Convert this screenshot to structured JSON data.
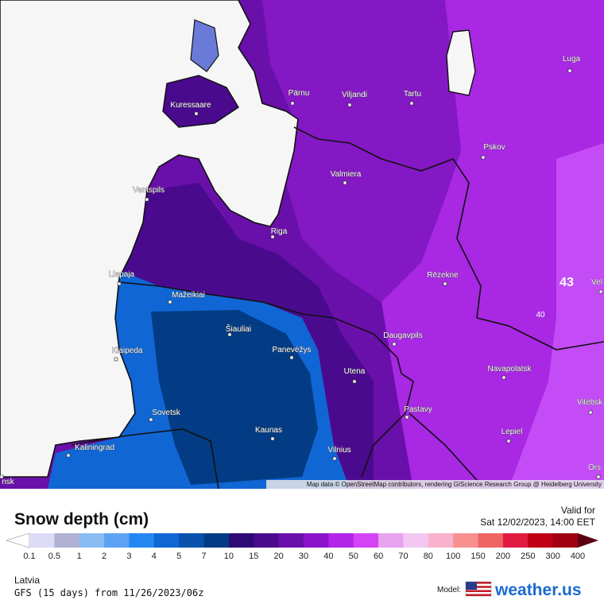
{
  "map": {
    "cities": [
      "Luga",
      "Tartu",
      "Pärnu",
      "Viljandi",
      "Kuressaare",
      "Pskov",
      "Valmiera",
      "Ventspils",
      "Riga",
      "Liepaja",
      "Rēzekne",
      "Mažeikiai",
      "Šiauliai",
      "Klaipeda",
      "Panevėžys",
      "Daugavpils",
      "Utena",
      "Navapolatsk",
      "Sovetsk",
      "Pastavy",
      "Kaunas",
      "Lepiel",
      "Kaliningrad",
      "Vilnius",
      "Vitebsk",
      "Ors",
      "Vel",
      "nsk"
    ],
    "value_labels": [
      "43",
      "40"
    ],
    "attribution": "Map data © OpenStreetMap contributors, rendering GIScience Research Group @ Heidelberg University"
  },
  "legend": {
    "title": "Snow depth (cm)",
    "valid_label": "Valid for",
    "valid_time": "Sat 12/02/2023, 14:00 EET",
    "ticks": [
      "0.1",
      "0.5",
      "1",
      "2",
      "3",
      "4",
      "5",
      "7",
      "10",
      "15",
      "20",
      "30",
      "40",
      "50",
      "60",
      "70",
      "80",
      "100",
      "150",
      "200",
      "250",
      "300",
      "400"
    ],
    "colors": [
      "#dcdcf8",
      "#b0b0d2",
      "#88bcf2",
      "#5ca2f2",
      "#2486f0",
      "#1066d4",
      "#0a52ac",
      "#033c84",
      "#2e0a74",
      "#4a0a8e",
      "#6a10aa",
      "#8a12c8",
      "#b224e8",
      "#d444f6",
      "#e8a2f0",
      "#f2c8f2",
      "#f8b2cc",
      "#f89090",
      "#f06464",
      "#e01a40",
      "#c00014",
      "#a00012"
    ]
  },
  "footer": {
    "region": "Latvia",
    "run": "GFS (15 days) from 11/26/2023/06z",
    "model_label": "Model:",
    "brand": "weather.us"
  }
}
